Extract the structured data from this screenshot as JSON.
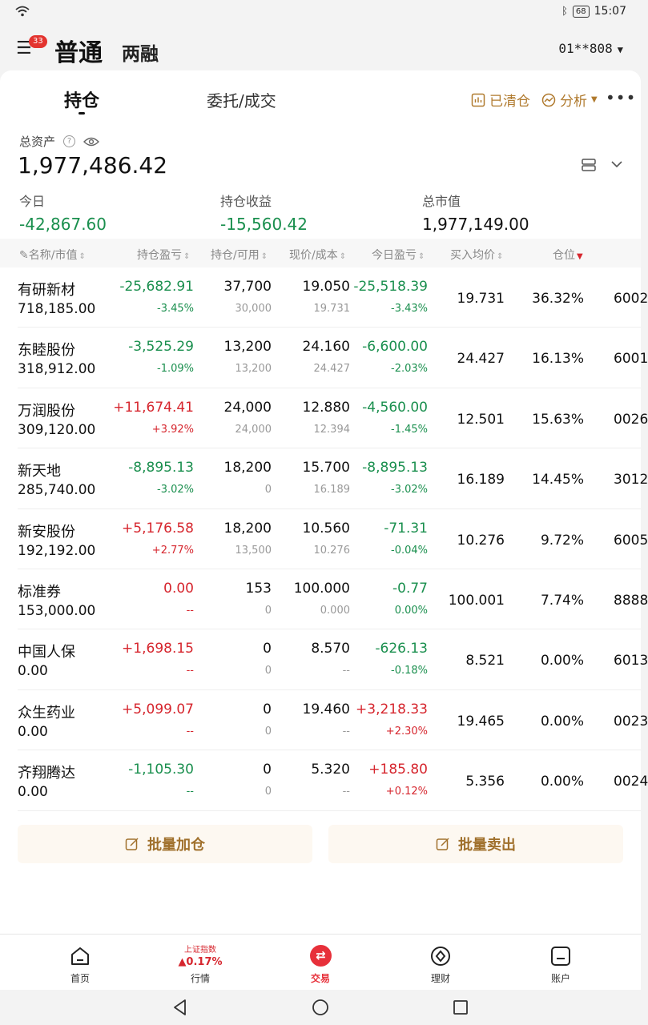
{
  "status_bar": {
    "time": "15:07",
    "battery": "68",
    "bluetooth_icon": "bluetooth-icon",
    "wifi_icon": "wifi-icon"
  },
  "header": {
    "menu_badge": "33",
    "mode_main": "普通",
    "mode_sub": "两融",
    "account": "01**808"
  },
  "tabs": {
    "holdings": "持仓",
    "orders": "委托/成交"
  },
  "tools": {
    "cleared": "已清仓",
    "analysis": "分析"
  },
  "assets": {
    "total_label": "总资产",
    "total_value": "1,977,486.42",
    "today_label": "今日",
    "today_value": "-42,867.60",
    "profit_label": "持仓收益",
    "profit_value": "-15,560.42",
    "mv_label": "总市值",
    "mv_value": "1,977,149.00"
  },
  "table_headers": {
    "name": "名称/市值",
    "pl": "持仓盈亏",
    "pos": "持仓/可用",
    "price": "现价/成本",
    "today": "今日盈亏",
    "avg": "买入均价",
    "ratio": "仓位"
  },
  "rows": [
    {
      "name": "有研新材",
      "mv": "718,185.00",
      "pl": "-25,682.91",
      "plr": "-3.45%",
      "pos": "37,700",
      "avail": "30,000",
      "price": "19.050",
      "cost": "19.731",
      "tpl": "-25,518.39",
      "tplr": "-3.43%",
      "avg": "19.731",
      "ratio": "36.32%",
      "code": "6002"
    },
    {
      "name": "东睦股份",
      "mv": "318,912.00",
      "pl": "-3,525.29",
      "plr": "-1.09%",
      "pos": "13,200",
      "avail": "13,200",
      "price": "24.160",
      "cost": "24.427",
      "tpl": "-6,600.00",
      "tplr": "-2.03%",
      "avg": "24.427",
      "ratio": "16.13%",
      "code": "6001"
    },
    {
      "name": "万润股份",
      "mv": "309,120.00",
      "pl": "+11,674.41",
      "plr": "+3.92%",
      "pos": "24,000",
      "avail": "24,000",
      "price": "12.880",
      "cost": "12.394",
      "tpl": "-4,560.00",
      "tplr": "-1.45%",
      "avg": "12.501",
      "ratio": "15.63%",
      "code": "0026"
    },
    {
      "name": "新天地",
      "mv": "285,740.00",
      "pl": "-8,895.13",
      "plr": "-3.02%",
      "pos": "18,200",
      "avail": "0",
      "price": "15.700",
      "cost": "16.189",
      "tpl": "-8,895.13",
      "tplr": "-3.02%",
      "avg": "16.189",
      "ratio": "14.45%",
      "code": "3012"
    },
    {
      "name": "新安股份",
      "mv": "192,192.00",
      "pl": "+5,176.58",
      "plr": "+2.77%",
      "pos": "18,200",
      "avail": "13,500",
      "price": "10.560",
      "cost": "10.276",
      "tpl": "-71.31",
      "tplr": "-0.04%",
      "avg": "10.276",
      "ratio": "9.72%",
      "code": "6005"
    },
    {
      "name": "标准券",
      "mv": "153,000.00",
      "pl": "0.00",
      "plr": "--",
      "pos": "153",
      "avail": "0",
      "price": "100.000",
      "cost": "0.000",
      "tpl": "-0.77",
      "tplr": "0.00%",
      "avg": "100.001",
      "ratio": "7.74%",
      "code": "8888"
    },
    {
      "name": "中国人保",
      "mv": "0.00",
      "pl": "+1,698.15",
      "plr": "--",
      "pos": "0",
      "avail": "0",
      "price": "8.570",
      "cost": "--",
      "tpl": "-626.13",
      "tplr": "-0.18%",
      "avg": "8.521",
      "ratio": "0.00%",
      "code": "6013"
    },
    {
      "name": "众生药业",
      "mv": "0.00",
      "pl": "+5,099.07",
      "plr": "--",
      "pos": "0",
      "avail": "0",
      "price": "19.460",
      "cost": "--",
      "tpl": "+3,218.33",
      "tplr": "+2.30%",
      "avg": "19.465",
      "ratio": "0.00%",
      "code": "0023"
    },
    {
      "name": "齐翔腾达",
      "mv": "0.00",
      "pl": "-1,105.30",
      "plr": "--",
      "pos": "0",
      "avail": "0",
      "price": "5.320",
      "cost": "--",
      "tpl": "+185.80",
      "tplr": "+0.12%",
      "avg": "5.356",
      "ratio": "0.00%",
      "code": "0024"
    }
  ],
  "row_colors": [
    {
      "pl": "green",
      "tpl": "green"
    },
    {
      "pl": "green",
      "tpl": "green"
    },
    {
      "pl": "red",
      "tpl": "green"
    },
    {
      "pl": "green",
      "tpl": "green"
    },
    {
      "pl": "red",
      "tpl": "green"
    },
    {
      "pl": "red",
      "tpl": "green"
    },
    {
      "pl": "red",
      "tpl": "green"
    },
    {
      "pl": "red",
      "tpl": "red"
    },
    {
      "pl": "green",
      "tpl": "red"
    }
  ],
  "actions": {
    "batch_add": "批量加仓",
    "batch_sell": "批量卖出"
  },
  "bottom_nav": {
    "home": "首页",
    "market": "行情",
    "index_name": "上证指数",
    "index_value": "▲0.17%",
    "trade": "交易",
    "wealth": "理财",
    "account": "账户"
  },
  "colors": {
    "up": "#d6262e",
    "down": "#1a8f4e",
    "accent": "#b07a2e",
    "trade_red": "#e7303a"
  }
}
